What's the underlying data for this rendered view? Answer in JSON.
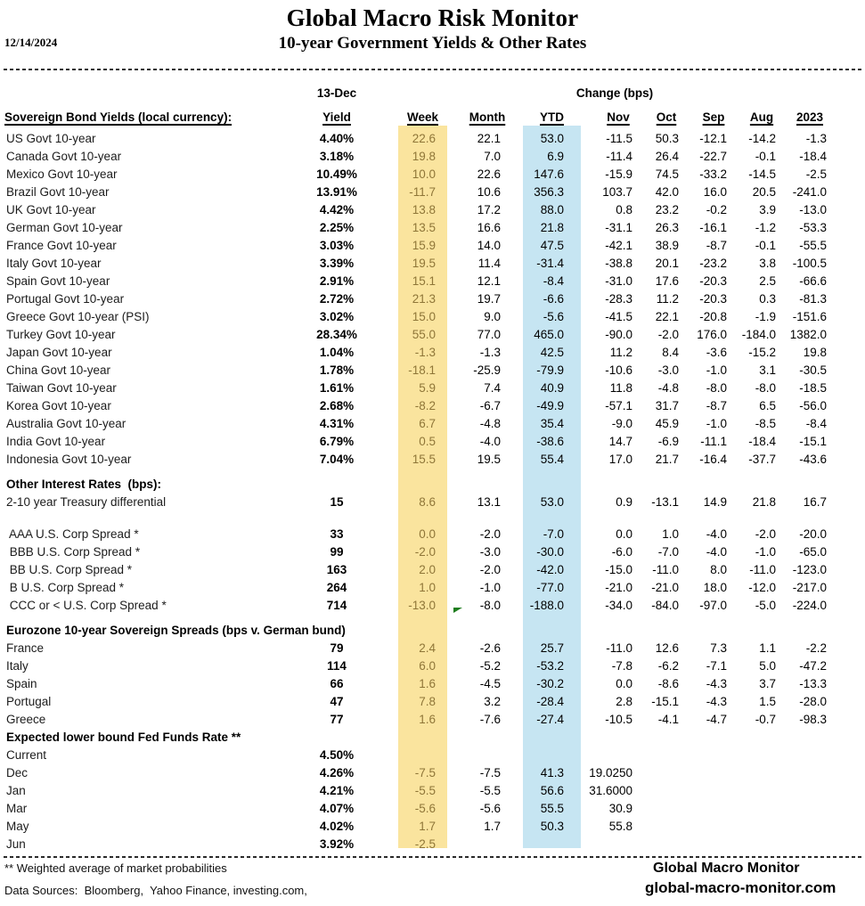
{
  "meta": {
    "date": "12/14/2024",
    "title": "Global Macro Risk Monitor",
    "subtitle": "10-year Government Yields & Other Rates"
  },
  "table": {
    "date_group_header": "13-Dec",
    "change_group_header": "Change (bps)",
    "row_label_header": "Sovereign Bond Yields (local currency):",
    "columns": [
      "Yield",
      "Week",
      "Month",
      "YTD",
      "Nov",
      "Oct",
      "Sep",
      "Aug",
      "2023"
    ],
    "highlight_colors": {
      "week_band": "#fae49e",
      "ytd_band": "#c6e5f2",
      "week_text": "#8f7638",
      "marker_green": "#1e7d1e"
    },
    "rows": [
      {
        "type": "data",
        "label": "US Govt 10-year",
        "yield": "4.40%",
        "week": "22.6",
        "month": "22.1",
        "ytd": "53.0",
        "nov": "-11.5",
        "oct": "50.3",
        "sep": "-12.1",
        "aug": "-14.2",
        "y2023": "-1.3"
      },
      {
        "type": "data",
        "label": "Canada Govt 10-year",
        "yield": "3.18%",
        "week": "19.8",
        "month": "7.0",
        "ytd": "6.9",
        "nov": "-11.4",
        "oct": "26.4",
        "sep": "-22.7",
        "aug": "-0.1",
        "y2023": "-18.4"
      },
      {
        "type": "data",
        "label": "Mexico Govt 10-year",
        "yield": "10.49%",
        "week": "10.0",
        "month": "22.6",
        "ytd": "147.6",
        "nov": "-15.9",
        "oct": "74.5",
        "sep": "-33.2",
        "aug": "-14.5",
        "y2023": "-2.5"
      },
      {
        "type": "data",
        "label": "Brazil Govt 10-year",
        "yield": "13.91%",
        "week": "-11.7",
        "month": "10.6",
        "ytd": "356.3",
        "nov": "103.7",
        "oct": "42.0",
        "sep": "16.0",
        "aug": "20.5",
        "y2023": "-241.0"
      },
      {
        "type": "data",
        "label": "UK Govt 10-year",
        "yield": "4.42%",
        "week": "13.8",
        "month": "17.2",
        "ytd": "88.0",
        "nov": "0.8",
        "oct": "23.2",
        "sep": "-0.2",
        "aug": "3.9",
        "y2023": "-13.0"
      },
      {
        "type": "data",
        "label": "German Govt 10-year",
        "yield": "2.25%",
        "week": "13.5",
        "month": "16.6",
        "ytd": "21.8",
        "nov": "-31.1",
        "oct": "26.3",
        "sep": "-16.1",
        "aug": "-1.2",
        "y2023": "-53.3"
      },
      {
        "type": "data",
        "label": "France Govt 10-year",
        "yield": "3.03%",
        "week": "15.9",
        "month": "14.0",
        "ytd": "47.5",
        "nov": "-42.1",
        "oct": "38.9",
        "sep": "-8.7",
        "aug": "-0.1",
        "y2023": "-55.5"
      },
      {
        "type": "data",
        "label": "Italy Govt 10-year",
        "yield": "3.39%",
        "week": "19.5",
        "month": "11.4",
        "ytd": "-31.4",
        "nov": "-38.8",
        "oct": "20.1",
        "sep": "-23.2",
        "aug": "3.8",
        "y2023": "-100.5"
      },
      {
        "type": "data",
        "label": "Spain Govt 10-year",
        "yield": "2.91%",
        "week": "15.1",
        "month": "12.1",
        "ytd": "-8.4",
        "nov": "-31.0",
        "oct": "17.6",
        "sep": "-20.3",
        "aug": "2.5",
        "y2023": "-66.6"
      },
      {
        "type": "data",
        "label": "Portugal Govt 10-year",
        "yield": "2.72%",
        "week": "21.3",
        "month": "19.7",
        "ytd": "-6.6",
        "nov": "-28.3",
        "oct": "11.2",
        "sep": "-20.3",
        "aug": "0.3",
        "y2023": "-81.3"
      },
      {
        "type": "data",
        "label": "Greece Govt 10-year (PSI)",
        "yield": "3.02%",
        "week": "15.0",
        "month": "9.0",
        "ytd": "-5.6",
        "nov": "-41.5",
        "oct": "22.1",
        "sep": "-20.8",
        "aug": "-1.9",
        "y2023": "-151.6"
      },
      {
        "type": "data",
        "label": "Turkey Govt 10-year",
        "yield": "28.34%",
        "week": "55.0",
        "month": "77.0",
        "ytd": "465.0",
        "nov": "-90.0",
        "oct": "-2.0",
        "sep": "176.0",
        "aug": "-184.0",
        "y2023": "1382.0"
      },
      {
        "type": "data",
        "label": "Japan Govt 10-year",
        "yield": "1.04%",
        "week": "-1.3",
        "month": "-1.3",
        "ytd": "42.5",
        "nov": "11.2",
        "oct": "8.4",
        "sep": "-3.6",
        "aug": "-15.2",
        "y2023": "19.8"
      },
      {
        "type": "data",
        "label": "China Govt 10-year",
        "yield": "1.78%",
        "week": "-18.1",
        "month": "-25.9",
        "ytd": "-79.9",
        "nov": "-10.6",
        "oct": "-3.0",
        "sep": "-1.0",
        "aug": "3.1",
        "y2023": "-30.5"
      },
      {
        "type": "data",
        "label": "Taiwan Govt 10-year",
        "yield": "1.61%",
        "week": "5.9",
        "month": "7.4",
        "ytd": "40.9",
        "nov": "11.8",
        "oct": "-4.8",
        "sep": "-8.0",
        "aug": "-8.0",
        "y2023": "-18.5"
      },
      {
        "type": "data",
        "label": "Korea Govt 10-year",
        "yield": "2.68%",
        "week": "-8.2",
        "month": "-6.7",
        "ytd": "-49.9",
        "nov": "-57.1",
        "oct": "31.7",
        "sep": "-8.7",
        "aug": "6.5",
        "y2023": "-56.0"
      },
      {
        "type": "data",
        "label": "Australia Govt 10-year",
        "yield": "4.31%",
        "week": "6.7",
        "month": "-4.8",
        "ytd": "35.4",
        "nov": "-9.0",
        "oct": "45.9",
        "sep": "-1.0",
        "aug": "-8.5",
        "y2023": "-8.4"
      },
      {
        "type": "data",
        "label": "India Govt 10-year",
        "yield": "6.79%",
        "week": "0.5",
        "month": "-4.0",
        "ytd": "-38.6",
        "nov": "14.7",
        "oct": "-6.9",
        "sep": "-11.1",
        "aug": "-18.4",
        "y2023": "-15.1"
      },
      {
        "type": "data",
        "label": "Indonesia Govt 10-year",
        "yield": "7.04%",
        "week": "15.5",
        "month": "19.5",
        "ytd": "55.4",
        "nov": "17.0",
        "oct": "21.7",
        "sep": "-16.4",
        "aug": "-37.7",
        "y2023": "-43.6"
      },
      {
        "type": "gap",
        "h": 8
      },
      {
        "type": "section",
        "label": "Other Interest Rates  (bps):"
      },
      {
        "type": "data",
        "label": "2-10 year Treasury differential",
        "yield": "15",
        "week": "8.6",
        "month": "13.1",
        "ytd": "53.0",
        "nov": "0.9",
        "oct": "-13.1",
        "sep": "14.9",
        "aug": "21.8",
        "y2023": "16.7"
      },
      {
        "type": "gap",
        "h": 16
      },
      {
        "type": "data",
        "label": " AAA U.S. Corp Spread *",
        "yield": "33",
        "week": "0.0",
        "month": "-2.0",
        "ytd": "-7.0",
        "nov": "0.0",
        "oct": "1.0",
        "sep": "-4.0",
        "aug": "-2.0",
        "y2023": "-20.0"
      },
      {
        "type": "data",
        "label": " BBB U.S. Corp Spread *",
        "yield": "99",
        "week": "-2.0",
        "month": "-3.0",
        "ytd": "-30.0",
        "nov": "-6.0",
        "oct": "-7.0",
        "sep": "-4.0",
        "aug": "-1.0",
        "y2023": "-65.0"
      },
      {
        "type": "data",
        "label": " BB U.S. Corp Spread *",
        "yield": "163",
        "week": "2.0",
        "month": "-2.0",
        "ytd": "-42.0",
        "nov": "-15.0",
        "oct": "-11.0",
        "sep": "8.0",
        "aug": "-11.0",
        "y2023": "-123.0"
      },
      {
        "type": "data",
        "label": " B U.S. Corp Spread *",
        "yield": "264",
        "week": "1.0",
        "month": "-1.0",
        "ytd": "-77.0",
        "nov": "-21.0",
        "oct": "-21.0",
        "sep": "18.0",
        "aug": "-12.0",
        "y2023": "-217.0"
      },
      {
        "type": "data",
        "label": " CCC or < U.S. Corp Spread *",
        "yield": "714",
        "week": "-13.0",
        "month": "-8.0",
        "ytd": "-188.0",
        "nov": "-34.0",
        "oct": "-84.0",
        "sep": "-97.0",
        "aug": "-5.0",
        "y2023": "-224.0",
        "marker": true
      },
      {
        "type": "gap",
        "h": 8
      },
      {
        "type": "section",
        "label": "Eurozone 10-year Sovereign Spreads (bps v. German bund)"
      },
      {
        "type": "data",
        "label": "France",
        "yield": "79",
        "week": "2.4",
        "month": "-2.6",
        "ytd": "25.7",
        "nov": "-11.0",
        "oct": "12.6",
        "sep": "7.3",
        "aug": "1.1",
        "y2023": "-2.2"
      },
      {
        "type": "data",
        "label": "Italy",
        "yield": "114",
        "week": "6.0",
        "month": "-5.2",
        "ytd": "-53.2",
        "nov": "-7.8",
        "oct": "-6.2",
        "sep": "-7.1",
        "aug": "5.0",
        "y2023": "-47.2"
      },
      {
        "type": "data",
        "label": "Spain",
        "yield": "66",
        "week": "1.6",
        "month": "-4.5",
        "ytd": "-30.2",
        "nov": "0.0",
        "oct": "-8.6",
        "sep": "-4.3",
        "aug": "3.7",
        "y2023": "-13.3"
      },
      {
        "type": "data",
        "label": "Portugal",
        "yield": "47",
        "week": "7.8",
        "month": "3.2",
        "ytd": "-28.4",
        "nov": "2.8",
        "oct": "-15.1",
        "sep": "-4.3",
        "aug": "1.5",
        "y2023": "-28.0"
      },
      {
        "type": "data",
        "label": "Greece",
        "yield": "77",
        "week": "1.6",
        "month": "-7.6",
        "ytd": "-27.4",
        "nov": "-10.5",
        "oct": "-4.1",
        "sep": "-4.7",
        "aug": "-0.7",
        "y2023": "-98.3"
      },
      {
        "type": "section",
        "label": "Expected lower bound Fed Funds Rate **"
      },
      {
        "type": "data",
        "label": "Current",
        "yield": "4.50%",
        "week": "",
        "month": "",
        "ytd": "",
        "nov": "",
        "oct": "",
        "sep": "",
        "aug": "",
        "y2023": ""
      },
      {
        "type": "data",
        "label": "Dec",
        "yield": "4.26%",
        "week": "-7.5",
        "month": "-7.5",
        "ytd": "41.3",
        "nov": "19.0250",
        "oct": "",
        "sep": "",
        "aug": "",
        "y2023": ""
      },
      {
        "type": "data",
        "label": "Jan",
        "yield": "4.21%",
        "week": "-5.5",
        "month": "-5.5",
        "ytd": "56.6",
        "nov": "31.6000",
        "oct": "",
        "sep": "",
        "aug": "",
        "y2023": ""
      },
      {
        "type": "data",
        "label": "Mar",
        "yield": "4.07%",
        "week": "-5.6",
        "month": "-5.6",
        "ytd": "55.5",
        "nov": "30.9",
        "oct": "",
        "sep": "",
        "aug": "",
        "y2023": ""
      },
      {
        "type": "data",
        "label": "May",
        "yield": "4.02%",
        "week": "1.7",
        "month": "1.7",
        "ytd": "50.3",
        "nov": "55.8",
        "oct": "",
        "sep": "",
        "aug": "",
        "y2023": ""
      },
      {
        "type": "data",
        "label": "Jun",
        "yield": "3.92%",
        "week": "-2.5",
        "month": "",
        "ytd": "",
        "nov": "",
        "oct": "",
        "sep": "",
        "aug": "",
        "y2023": ""
      }
    ]
  },
  "footer": {
    "note": "** Weighted average of market probabilities",
    "sources": "Data Sources:  Bloomberg,  Yahoo Finance, investing.com,",
    "brand": "Global Macro Monitor",
    "site": "global-macro-monitor.com"
  }
}
